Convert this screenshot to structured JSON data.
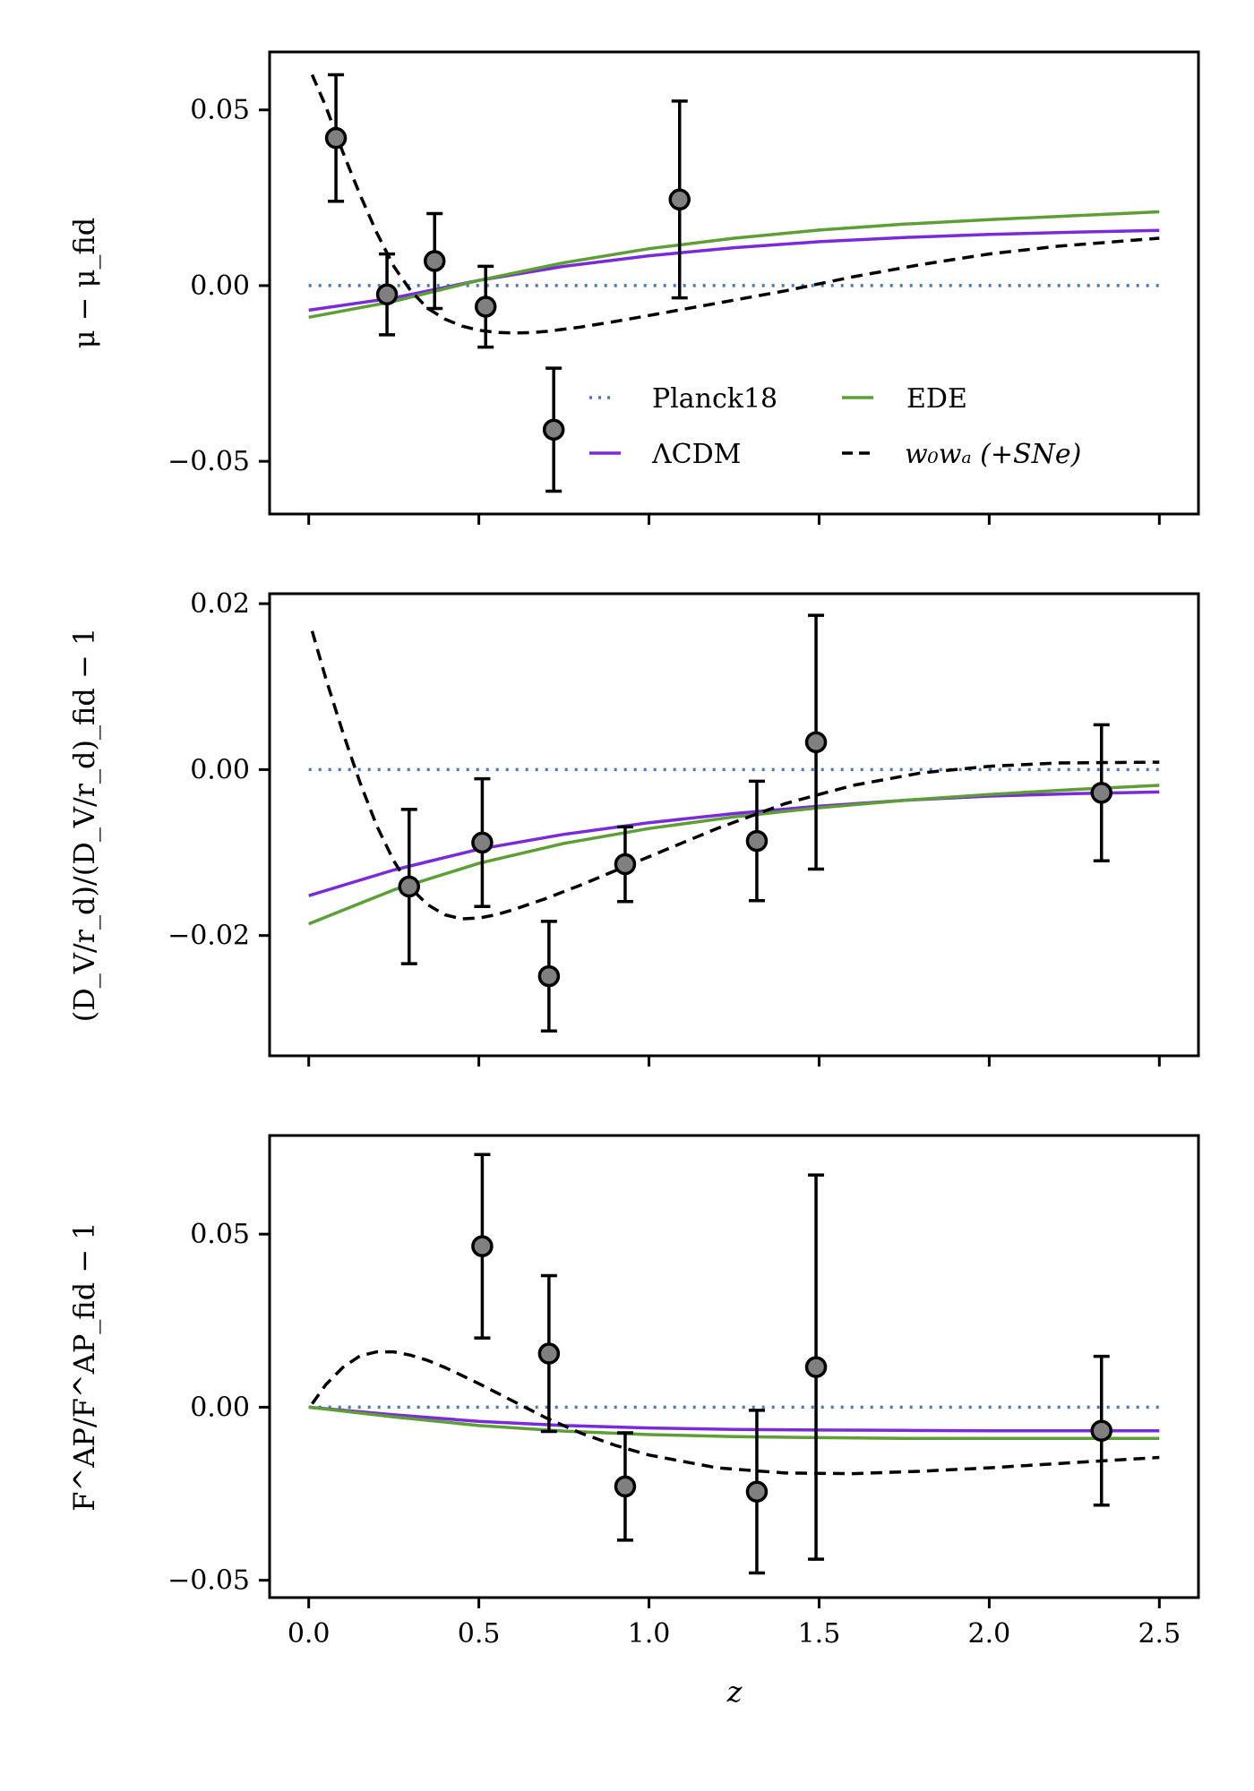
{
  "colors": {
    "planck": "#4a78b0",
    "lcdm": "#7a2bd9",
    "ede": "#5e9e36",
    "w0wa": "#000000",
    "marker_fill": "#808080",
    "marker_edge": "#000000"
  },
  "legend": {
    "entries": [
      {
        "key": "planck",
        "label": "Planck18"
      },
      {
        "key": "ede",
        "label": "EDE"
      },
      {
        "key": "lcdm",
        "label": "ΛCDM"
      },
      {
        "key": "w0wa",
        "label": "w₀wₐ (+SNe)"
      }
    ]
  },
  "xaxis": {
    "label": "z",
    "range": [
      -0.115,
      2.615
    ],
    "ticks": [
      0.0,
      0.5,
      1.0,
      1.5,
      2.0,
      2.5
    ],
    "tick_labels": [
      "0.0",
      "0.5",
      "1.0",
      "1.5",
      "2.0",
      "2.5"
    ]
  },
  "chart_data": [
    {
      "type": "line",
      "title": "",
      "ylabel": "μ − μ_fid",
      "ylim": [
        -0.065,
        0.0665
      ],
      "yticks": [
        -0.05,
        0.0,
        0.05
      ],
      "ytick_labels": [
        "−0.05",
        "0.00",
        "0.05"
      ],
      "show_legend": true,
      "points": [
        {
          "z": 0.08,
          "y": 0.042,
          "err_low": 0.018,
          "err_high": 0.018
        },
        {
          "z": 0.23,
          "y": -0.0025,
          "err_low": 0.0115,
          "err_high": 0.0115
        },
        {
          "z": 0.37,
          "y": 0.007,
          "err_low": 0.0135,
          "err_high": 0.0135
        },
        {
          "z": 0.52,
          "y": -0.006,
          "err_low": 0.0115,
          "err_high": 0.0115
        },
        {
          "z": 0.72,
          "y": -0.041,
          "err_low": 0.0175,
          "err_high": 0.0175
        },
        {
          "z": 1.09,
          "y": 0.0245,
          "err_low": 0.028,
          "err_high": 0.028
        }
      ],
      "series": [
        {
          "key": "planck",
          "name": "Planck18",
          "style": "dotted",
          "x": [
            0.0,
            2.5
          ],
          "y": [
            0.0,
            0.0
          ]
        },
        {
          "key": "lcdm",
          "name": "ΛCDM",
          "style": "solid",
          "x": [
            0.0,
            0.25,
            0.5,
            0.75,
            1.0,
            1.25,
            1.5,
            1.75,
            2.0,
            2.25,
            2.5
          ],
          "y": [
            -0.007,
            -0.0035,
            0.0015,
            0.0055,
            0.0085,
            0.0108,
            0.0125,
            0.0137,
            0.0146,
            0.0152,
            0.0157
          ]
        },
        {
          "key": "ede",
          "name": "EDE",
          "style": "solid",
          "x": [
            0.0,
            0.25,
            0.5,
            0.75,
            1.0,
            1.25,
            1.5,
            1.75,
            2.0,
            2.25,
            2.5
          ],
          "y": [
            -0.009,
            -0.0045,
            0.0015,
            0.0065,
            0.0105,
            0.0135,
            0.0158,
            0.0175,
            0.0188,
            0.0199,
            0.021
          ]
        },
        {
          "key": "w0wa",
          "name": "w₀wₐ (+SNe)",
          "style": "dashed",
          "x": [
            0.01,
            0.05,
            0.1,
            0.15,
            0.2,
            0.25,
            0.3,
            0.35,
            0.4,
            0.45,
            0.5,
            0.55,
            0.6,
            0.65,
            0.7,
            0.8,
            0.9,
            1.0,
            1.2,
            1.4,
            1.6,
            1.8,
            2.0,
            2.2,
            2.5
          ],
          "y": [
            0.06,
            0.051,
            0.038,
            0.026,
            0.015,
            0.0055,
            -0.0015,
            -0.0065,
            -0.0095,
            -0.0115,
            -0.0127,
            -0.0133,
            -0.0135,
            -0.0134,
            -0.013,
            -0.0118,
            -0.0102,
            -0.0085,
            -0.005,
            -0.0015,
            0.0025,
            0.006,
            0.009,
            0.0112,
            0.0135
          ]
        }
      ]
    },
    {
      "type": "line",
      "title": "",
      "ylabel": "(D_V/r_d)/(D_V/r_d)_fid − 1",
      "ylim": [
        -0.0345,
        0.0212
      ],
      "yticks": [
        -0.02,
        0.0,
        0.02
      ],
      "ytick_labels": [
        "−0.02",
        "0.00",
        "0.02"
      ],
      "show_legend": false,
      "points": [
        {
          "z": 0.295,
          "y": -0.0141,
          "err_low": 0.0093,
          "err_high": 0.0093
        },
        {
          "z": 0.51,
          "y": -0.0088,
          "err_low": 0.0077,
          "err_high": 0.0077
        },
        {
          "z": 0.706,
          "y": -0.0249,
          "err_low": 0.0066,
          "err_high": 0.0066
        },
        {
          "z": 0.93,
          "y": -0.0114,
          "err_low": 0.0045,
          "err_high": 0.0045
        },
        {
          "z": 1.317,
          "y": -0.0086,
          "err_low": 0.0072,
          "err_high": 0.0072
        },
        {
          "z": 1.491,
          "y": 0.0033,
          "err_low": 0.0153,
          "err_high": 0.0153
        },
        {
          "z": 2.33,
          "y": -0.0028,
          "err_low": 0.0082,
          "err_high": 0.0082
        }
      ],
      "series": [
        {
          "key": "planck",
          "name": "Planck18",
          "style": "dotted",
          "x": [
            0.0,
            2.5
          ],
          "y": [
            0.0,
            0.0
          ]
        },
        {
          "key": "lcdm",
          "name": "ΛCDM",
          "style": "solid",
          "x": [
            0.0,
            0.25,
            0.5,
            0.75,
            1.0,
            1.25,
            1.5,
            1.75,
            2.0,
            2.25,
            2.5
          ],
          "y": [
            -0.0152,
            -0.0121,
            -0.0096,
            -0.0078,
            -0.0064,
            -0.0053,
            -0.0044,
            -0.0037,
            -0.0032,
            -0.0029,
            -0.0027
          ]
        },
        {
          "key": "ede",
          "name": "EDE",
          "style": "solid",
          "x": [
            0.0,
            0.25,
            0.5,
            0.75,
            1.0,
            1.25,
            1.5,
            1.75,
            2.0,
            2.25,
            2.5
          ],
          "y": [
            -0.0186,
            -0.0145,
            -0.0113,
            -0.0089,
            -0.0071,
            -0.0057,
            -0.0046,
            -0.0037,
            -0.003,
            -0.0024,
            -0.0019
          ]
        },
        {
          "key": "w0wa",
          "name": "w₀wₐ (+SNe)",
          "style": "dashed",
          "x": [
            0.01,
            0.05,
            0.1,
            0.15,
            0.2,
            0.25,
            0.3,
            0.35,
            0.4,
            0.45,
            0.5,
            0.55,
            0.6,
            0.7,
            0.8,
            0.9,
            1.0,
            1.2,
            1.4,
            1.6,
            1.8,
            2.0,
            2.2,
            2.5
          ],
          "y": [
            0.0167,
            0.011,
            0.0045,
            -0.0015,
            -0.0068,
            -0.011,
            -0.0143,
            -0.0163,
            -0.0175,
            -0.018,
            -0.0179,
            -0.0175,
            -0.0169,
            -0.0155,
            -0.0139,
            -0.0122,
            -0.0105,
            -0.0071,
            -0.0041,
            -0.0019,
            -0.0004,
            0.0004,
            0.0008,
            0.0009
          ]
        }
      ]
    },
    {
      "type": "line",
      "title": "",
      "ylabel": "F^AP/F^AP_fid − 1",
      "ylim": [
        -0.055,
        0.0785
      ],
      "yticks": [
        -0.05,
        0.0,
        0.05
      ],
      "ytick_labels": [
        "−0.05",
        "0.00",
        "0.05"
      ],
      "show_legend": false,
      "points": [
        {
          "z": 0.51,
          "y": 0.0465,
          "err_low": 0.0265,
          "err_high": 0.0265
        },
        {
          "z": 0.706,
          "y": 0.0155,
          "err_low": 0.0225,
          "err_high": 0.0225
        },
        {
          "z": 0.93,
          "y": -0.0229,
          "err_low": 0.0155,
          "err_high": 0.0155
        },
        {
          "z": 1.317,
          "y": -0.0244,
          "err_low": 0.0235,
          "err_high": 0.0235
        },
        {
          "z": 1.491,
          "y": 0.0116,
          "err_low": 0.0555,
          "err_high": 0.0555
        },
        {
          "z": 2.33,
          "y": -0.0068,
          "err_low": 0.0215,
          "err_high": 0.0215
        }
      ],
      "series": [
        {
          "key": "planck",
          "name": "Planck18",
          "style": "dotted",
          "x": [
            0.0,
            2.5
          ],
          "y": [
            0.0,
            0.0
          ]
        },
        {
          "key": "lcdm",
          "name": "ΛCDM",
          "style": "solid",
          "x": [
            0.0,
            0.25,
            0.5,
            0.75,
            1.0,
            1.25,
            1.5,
            1.75,
            2.0,
            2.25,
            2.5
          ],
          "y": [
            0.0,
            -0.0022,
            -0.0041,
            -0.0053,
            -0.006,
            -0.0064,
            -0.0066,
            -0.0067,
            -0.0068,
            -0.0068,
            -0.0068
          ]
        },
        {
          "key": "ede",
          "name": "EDE",
          "style": "solid",
          "x": [
            0.0,
            0.25,
            0.5,
            0.75,
            1.0,
            1.25,
            1.5,
            1.75,
            2.0,
            2.25,
            2.5
          ],
          "y": [
            0.0,
            -0.0028,
            -0.0053,
            -0.0069,
            -0.0079,
            -0.0085,
            -0.0088,
            -0.009,
            -0.009,
            -0.009,
            -0.009
          ]
        },
        {
          "key": "w0wa",
          "name": "w₀wₐ (+SNe)",
          "style": "dashed",
          "x": [
            0.01,
            0.05,
            0.1,
            0.15,
            0.2,
            0.25,
            0.3,
            0.35,
            0.4,
            0.45,
            0.5,
            0.6,
            0.7,
            0.8,
            0.9,
            1.0,
            1.2,
            1.4,
            1.6,
            1.8,
            2.0,
            2.2,
            2.5
          ],
          "y": [
            0.001,
            0.0065,
            0.0115,
            0.0148,
            0.016,
            0.016,
            0.015,
            0.0135,
            0.0115,
            0.0092,
            0.0068,
            0.0018,
            -0.0032,
            -0.0075,
            -0.011,
            -0.0138,
            -0.0175,
            -0.019,
            -0.0192,
            -0.0185,
            -0.0175,
            -0.0163,
            -0.0145
          ]
        }
      ]
    }
  ]
}
